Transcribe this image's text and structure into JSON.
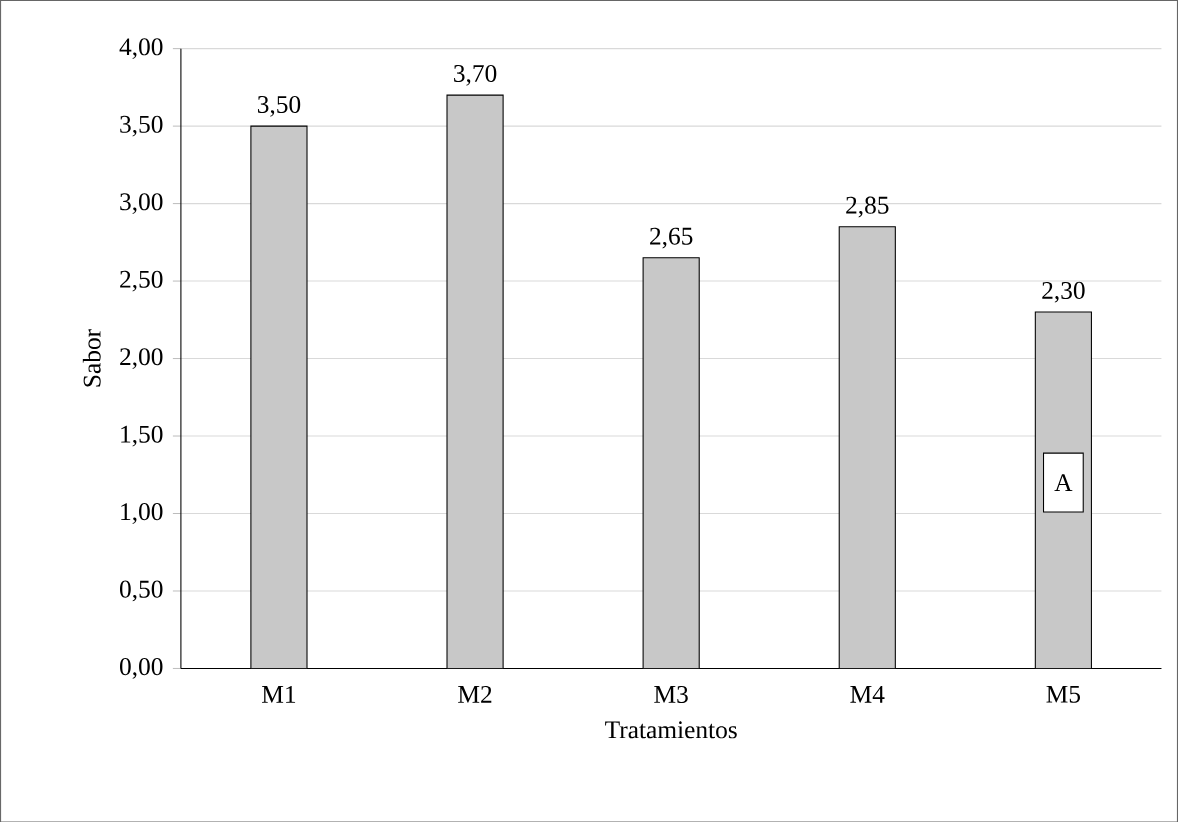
{
  "chart_data": {
    "type": "bar",
    "xlabel": "Tratamientos",
    "ylabel": "Sabor",
    "categories": [
      "M1",
      "M2",
      "M3",
      "M4",
      "M5"
    ],
    "values": [
      3.5,
      3.7,
      2.65,
      2.85,
      2.3
    ],
    "value_labels": [
      "3,50",
      "3,70",
      "2,65",
      "2,85",
      "2,30"
    ],
    "color": "#c8c8c8",
    "ylim": [
      0,
      4
    ],
    "yticks": [
      {
        "value": 0,
        "label": "0,00"
      },
      {
        "value": 0.5,
        "label": "0,50"
      },
      {
        "value": 1,
        "label": "1,00"
      },
      {
        "value": 1.5,
        "label": "1,50"
      },
      {
        "value": 2,
        "label": "2,00"
      },
      {
        "value": 2.5,
        "label": "2,50"
      },
      {
        "value": 3,
        "label": "3,00"
      },
      {
        "value": 3.5,
        "label": "3,50"
      },
      {
        "value": 4,
        "label": "4,00"
      }
    ],
    "grid": "y",
    "annotations": [
      {
        "text": "A",
        "x": "M5",
        "y": 1.2
      }
    ]
  }
}
